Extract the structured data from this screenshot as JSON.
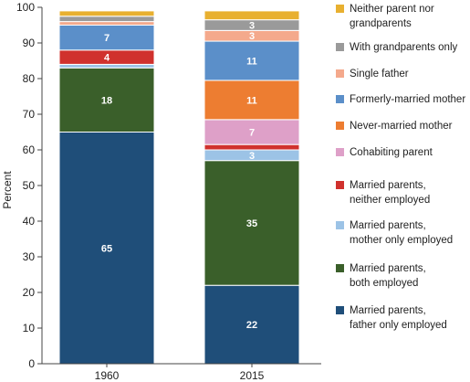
{
  "chart_data": {
    "type": "bar",
    "stacked": true,
    "categories": [
      "1960",
      "2015"
    ],
    "ylabel": "Percent",
    "ylim": [
      0,
      100
    ],
    "yticks": [
      "0",
      "10",
      "20",
      "30",
      "40",
      "50",
      "60",
      "70",
      "80",
      "90",
      "100"
    ],
    "grid": false,
    "legend_position": "right",
    "series": [
      {
        "name": "Married parents, father only employed",
        "legend_lines": [
          "Married parents,",
          "father only employed"
        ],
        "color": "#1f4e79",
        "values": [
          65,
          22
        ],
        "labels": [
          "65",
          "22"
        ]
      },
      {
        "name": "Married parents, both employed",
        "legend_lines": [
          "Married parents,",
          "both employed"
        ],
        "color": "#3a5f2a",
        "values": [
          18,
          35
        ],
        "labels": [
          "18",
          "35"
        ]
      },
      {
        "name": "Married parents, mother only employed",
        "legend_lines": [
          "Married parents,",
          "mother only employed"
        ],
        "color": "#9cc3e6",
        "values": [
          1,
          3
        ],
        "labels": [
          "",
          "3"
        ]
      },
      {
        "name": "Married parents, neither employed",
        "legend_lines": [
          "Married parents,",
          "neither employed"
        ],
        "color": "#d0312d",
        "values": [
          4,
          1.5
        ],
        "labels": [
          "4",
          ""
        ]
      },
      {
        "name": "Cohabiting parent",
        "legend_lines": [
          "Cohabiting parent"
        ],
        "color": "#dea0c8",
        "values": [
          0,
          7
        ],
        "labels": [
          "",
          "7"
        ]
      },
      {
        "name": "Never-married mother",
        "legend_lines": [
          "Never-married mother"
        ],
        "color": "#ed7d31",
        "values": [
          0,
          11
        ],
        "labels": [
          "",
          "11"
        ]
      },
      {
        "name": "Formerly-married mother",
        "legend_lines": [
          "Formerly-married mother"
        ],
        "color": "#5b8fc9",
        "values": [
          7,
          11
        ],
        "labels": [
          "7",
          "11"
        ]
      },
      {
        "name": "Single father",
        "legend_lines": [
          "Single father"
        ],
        "color": "#f4a98c",
        "values": [
          1,
          3
        ],
        "labels": [
          "",
          "3"
        ]
      },
      {
        "name": "With grandparents only",
        "legend_lines": [
          "With grandparents only"
        ],
        "color": "#9a9a9a",
        "values": [
          1.5,
          3
        ],
        "labels": [
          "",
          "3"
        ]
      },
      {
        "name": "Neither parent nor grandparents",
        "legend_lines": [
          "Neither parent nor",
          "grandparents"
        ],
        "color": "#e8b030",
        "values": [
          1.5,
          2.5
        ],
        "labels": [
          "",
          ""
        ]
      }
    ]
  }
}
